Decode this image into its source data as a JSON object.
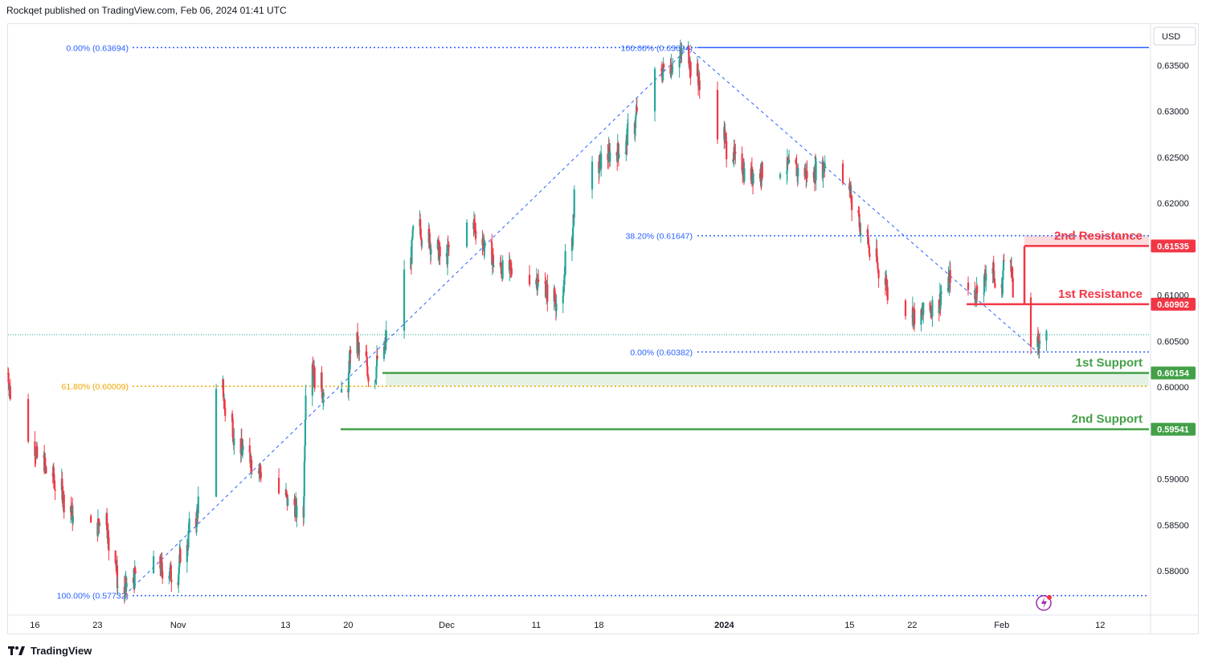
{
  "header": {
    "published_by": "Rockqet published on TradingView.com, Feb 06, 2024 01:41 UTC"
  },
  "footer": {
    "brand": "TradingView"
  },
  "chart_data": {
    "type": "candlestick",
    "currency": "USD",
    "y_range": [
      0.5752,
      0.6395
    ],
    "y_ticks": [
      "0.63500",
      "0.63000",
      "0.62500",
      "0.62000",
      "0.61000",
      "0.60500",
      "0.60000",
      "0.59000",
      "0.58500",
      "0.58000"
    ],
    "x_ticks": [
      "16",
      "23",
      "Nov",
      "13",
      "20",
      "Dec",
      "11",
      "18",
      "2024",
      "15",
      "22",
      "Feb",
      "12"
    ],
    "last_price": 0.6057,
    "fib_upper": [
      {
        "label": "0.00% (0.63694)",
        "value": 0.63694
      },
      {
        "label": "100.00% (0.63694)",
        "value": 0.63694
      },
      {
        "label": "38.20% (0.61647)",
        "value": 0.61647
      },
      {
        "label": "0.00% (0.60382)",
        "value": 0.60382
      }
    ],
    "fib_lower": [
      {
        "label": "61.80% (0.60009)",
        "value": 0.60009
      },
      {
        "label": "100.00% (0.57732)",
        "value": 0.57732
      }
    ],
    "levels": [
      {
        "name": "2nd Resistance",
        "value": 0.61535,
        "tag": "0.61535",
        "color": "#f23645"
      },
      {
        "name": "1st Resistance",
        "value": 0.60902,
        "tag": "0.60902",
        "color": "#f23645"
      },
      {
        "name": "1st Support",
        "value": 0.60154,
        "tag": "0.60154",
        "color": "#43a047"
      },
      {
        "name": "2nd Support",
        "value": 0.59541,
        "tag": "0.59541",
        "color": "#43a047"
      }
    ],
    "swing_points": [
      {
        "date": "2023-10-26",
        "price": 0.57732
      },
      {
        "date": "2023-12-28",
        "price": 0.63694
      },
      {
        "date": "2024-02-05",
        "price": 0.60382
      }
    ],
    "price_path": [
      {
        "date": "2023-10-13",
        "price": 0.6015
      },
      {
        "date": "2023-10-16",
        "price": 0.5935
      },
      {
        "date": "2023-10-19",
        "price": 0.589
      },
      {
        "date": "2023-10-22",
        "price": 0.5835
      },
      {
        "date": "2023-10-24",
        "price": 0.586
      },
      {
        "date": "2023-10-26",
        "price": 0.5776
      },
      {
        "date": "2023-10-29",
        "price": 0.581
      },
      {
        "date": "2023-11-01",
        "price": 0.5795
      },
      {
        "date": "2023-11-04",
        "price": 0.588
      },
      {
        "date": "2023-11-06",
        "price": 0.6
      },
      {
        "date": "2023-11-08",
        "price": 0.5935
      },
      {
        "date": "2023-11-10",
        "price": 0.5915
      },
      {
        "date": "2023-11-12",
        "price": 0.5895
      },
      {
        "date": "2023-11-15",
        "price": 0.586
      },
      {
        "date": "2023-11-16",
        "price": 0.603
      },
      {
        "date": "2023-11-19",
        "price": 0.5955
      },
      {
        "date": "2023-11-21",
        "price": 0.605
      },
      {
        "date": "2023-11-23",
        "price": 0.601
      },
      {
        "date": "2023-11-25",
        "price": 0.606
      },
      {
        "date": "2023-11-28",
        "price": 0.6175
      },
      {
        "date": "2023-12-01",
        "price": 0.614
      },
      {
        "date": "2023-12-04",
        "price": 0.618
      },
      {
        "date": "2023-12-07",
        "price": 0.613
      },
      {
        "date": "2023-12-11",
        "price": 0.612
      },
      {
        "date": "2023-12-14",
        "price": 0.609
      },
      {
        "date": "2023-12-16",
        "price": 0.6215
      },
      {
        "date": "2023-12-19",
        "price": 0.625
      },
      {
        "date": "2023-12-21",
        "price": 0.626
      },
      {
        "date": "2023-12-24",
        "price": 0.633
      },
      {
        "date": "2023-12-28",
        "price": 0.6365
      },
      {
        "date": "2023-12-30",
        "price": 0.632
      },
      {
        "date": "2024-01-02",
        "price": 0.6255
      },
      {
        "date": "2024-01-04",
        "price": 0.623
      },
      {
        "date": "2024-01-08",
        "price": 0.624
      },
      {
        "date": "2024-01-11",
        "price": 0.623
      },
      {
        "date": "2024-01-14",
        "price": 0.6255
      },
      {
        "date": "2024-01-16",
        "price": 0.619
      },
      {
        "date": "2024-01-18",
        "price": 0.614
      },
      {
        "date": "2024-01-20",
        "price": 0.61
      },
      {
        "date": "2024-01-23",
        "price": 0.6075
      },
      {
        "date": "2024-01-25",
        "price": 0.609
      },
      {
        "date": "2024-01-27",
        "price": 0.6125
      },
      {
        "date": "2024-01-29",
        "price": 0.6095
      },
      {
        "date": "2024-01-31",
        "price": 0.613
      },
      {
        "date": "2024-02-01",
        "price": 0.6105
      },
      {
        "date": "2024-02-02",
        "price": 0.6145
      },
      {
        "date": "2024-02-03",
        "price": 0.609
      },
      {
        "date": "2024-02-05",
        "price": 0.6045
      },
      {
        "date": "2024-02-06",
        "price": 0.6055
      }
    ],
    "colors": {
      "up": "#26a69a",
      "down": "#f23645",
      "fib": "#2962ff",
      "fib_text": "#2962ff",
      "fib_618": "#f0a500",
      "resistance": "#f23645",
      "support": "#43a047",
      "resistance_zone": "rgba(242,54,69,0.18)",
      "support_zone": "rgba(67,160,71,0.14)",
      "last_price_line": "#26a69a"
    }
  }
}
